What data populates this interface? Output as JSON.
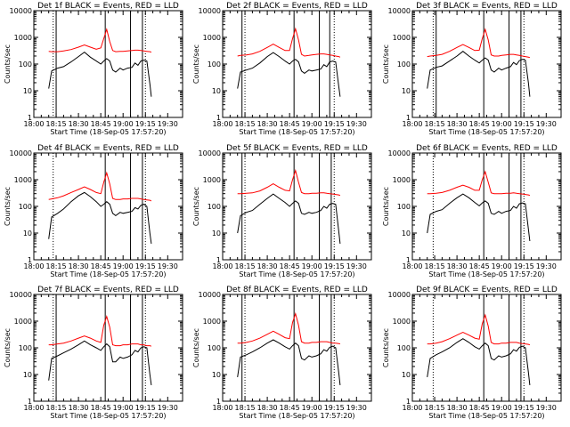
{
  "colors": {
    "events": "#000000",
    "lld": "#ff0000",
    "axis": "#000000",
    "background": "#ffffff"
  },
  "panel_title_suffix": " BLACK = Events, RED = LLD",
  "xlabel": "Start Time (18-Sep-05 17:57:20)",
  "ylabel": "Counts/sec",
  "x_tick_labels": [
    "18:00",
    "18:15",
    "18:30",
    "18:45",
    "19:00",
    "19:15",
    "19:30"
  ],
  "x_tick_minutes": [
    0,
    15,
    30,
    45,
    60,
    75,
    90
  ],
  "y_tick_labels": [
    "1",
    "10",
    "100",
    "1000",
    "10000"
  ],
  "y_tick_values": [
    1,
    10,
    100,
    1000,
    10000
  ],
  "chart_data": [
    {
      "type": "line",
      "title_prefix": "Det 1f",
      "xlim": [
        0,
        100
      ],
      "ylim": [
        1,
        10000
      ],
      "x_minutes": [
        10,
        12,
        16,
        20,
        25,
        30,
        34,
        38,
        42,
        45,
        47,
        49,
        51,
        53,
        55,
        58,
        60,
        63,
        66,
        68,
        70,
        72,
        74,
        76,
        78,
        79
      ],
      "series": [
        {
          "name": "Events",
          "values": [
            12,
            55,
            70,
            80,
            120,
            190,
            280,
            180,
            130,
            100,
            130,
            160,
            130,
            60,
            50,
            70,
            60,
            70,
            75,
            110,
            90,
            130,
            140,
            130,
            18,
            6
          ]
        },
        {
          "name": "LLD",
          "values": [
            300,
            290,
            290,
            310,
            350,
            430,
            520,
            430,
            360,
            400,
            900,
            2000,
            700,
            320,
            290,
            300,
            300,
            310,
            320,
            330,
            330,
            320,
            310,
            300,
            290,
            280
          ]
        }
      ],
      "vlines_solid_minutes": [
        15,
        48,
        65,
        73
      ],
      "vlines_dotted_minutes": [
        13,
        75
      ]
    },
    {
      "type": "line",
      "title_prefix": "Det 2f",
      "xlim": [
        0,
        100
      ],
      "ylim": [
        1,
        10000
      ],
      "x_minutes": [
        10,
        12,
        16,
        20,
        25,
        30,
        34,
        38,
        42,
        45,
        47,
        49,
        51,
        53,
        55,
        58,
        60,
        63,
        66,
        68,
        70,
        72,
        74,
        76,
        78,
        79
      ],
      "series": [
        {
          "name": "Events",
          "values": [
            12,
            50,
            60,
            70,
            110,
            190,
            270,
            190,
            130,
            100,
            130,
            150,
            120,
            55,
            45,
            60,
            55,
            60,
            65,
            95,
            80,
            120,
            130,
            120,
            15,
            6
          ]
        },
        {
          "name": "LLD",
          "values": [
            200,
            210,
            220,
            240,
            300,
            420,
            560,
            420,
            320,
            320,
            900,
            2100,
            800,
            230,
            200,
            210,
            220,
            230,
            240,
            240,
            230,
            220,
            210,
            200,
            190,
            180
          ]
        }
      ],
      "vlines_solid_minutes": [
        13,
        48,
        65,
        72
      ],
      "vlines_dotted_minutes": [
        15,
        75
      ]
    },
    {
      "type": "line",
      "title_prefix": "Det 3f",
      "xlim": [
        0,
        100
      ],
      "ylim": [
        1,
        10000
      ],
      "x_minutes": [
        10,
        12,
        16,
        20,
        25,
        30,
        34,
        38,
        42,
        45,
        47,
        49,
        51,
        53,
        55,
        58,
        60,
        63,
        66,
        68,
        70,
        72,
        74,
        76,
        78,
        79
      ],
      "series": [
        {
          "name": "Events",
          "values": [
            12,
            60,
            75,
            85,
            130,
            200,
            300,
            200,
            140,
            110,
            140,
            170,
            140,
            60,
            50,
            70,
            60,
            70,
            80,
            115,
            95,
            135,
            150,
            140,
            20,
            6
          ]
        },
        {
          "name": "LLD",
          "values": [
            190,
            200,
            210,
            230,
            300,
            420,
            540,
            420,
            320,
            330,
            900,
            2000,
            800,
            220,
            200,
            200,
            210,
            220,
            230,
            230,
            220,
            210,
            200,
            190,
            180,
            175
          ]
        }
      ],
      "vlines_solid_minutes": [
        16,
        48,
        65,
        73
      ],
      "vlines_dotted_minutes": [
        14,
        75
      ]
    },
    {
      "type": "line",
      "title_prefix": "Det 4f",
      "xlim": [
        0,
        100
      ],
      "ylim": [
        1,
        10000
      ],
      "x_minutes": [
        10,
        12,
        16,
        20,
        25,
        30,
        34,
        38,
        42,
        45,
        47,
        49,
        51,
        53,
        55,
        58,
        60,
        63,
        66,
        68,
        70,
        72,
        74,
        76,
        78,
        79
      ],
      "series": [
        {
          "name": "Events",
          "values": [
            6,
            40,
            55,
            80,
            150,
            250,
            330,
            230,
            150,
            100,
            120,
            150,
            120,
            55,
            45,
            60,
            55,
            60,
            65,
            90,
            80,
            110,
            120,
            100,
            10,
            4
          ]
        },
        {
          "name": "LLD",
          "values": [
            180,
            190,
            210,
            250,
            330,
            430,
            540,
            430,
            330,
            300,
            800,
            1800,
            700,
            200,
            180,
            180,
            190,
            190,
            200,
            200,
            200,
            190,
            180,
            175,
            170,
            160
          ]
        }
      ],
      "vlines_solid_minutes": [
        48,
        65,
        73
      ],
      "vlines_dotted_minutes": [
        13,
        75
      ]
    },
    {
      "type": "line",
      "title_prefix": "Det 5f",
      "xlim": [
        0,
        100
      ],
      "ylim": [
        1,
        10000
      ],
      "x_minutes": [
        10,
        12,
        16,
        20,
        25,
        30,
        34,
        38,
        42,
        45,
        47,
        49,
        51,
        53,
        55,
        58,
        60,
        63,
        66,
        68,
        70,
        72,
        74,
        76,
        78,
        79
      ],
      "series": [
        {
          "name": "Events",
          "values": [
            10,
            45,
            60,
            70,
            120,
            200,
            290,
            200,
            140,
            100,
            130,
            160,
            130,
            55,
            50,
            60,
            55,
            60,
            70,
            100,
            85,
            120,
            130,
            120,
            12,
            4
          ]
        },
        {
          "name": "LLD",
          "values": [
            300,
            300,
            310,
            320,
            380,
            520,
            700,
            520,
            400,
            380,
            1000,
            2200,
            800,
            330,
            300,
            300,
            310,
            310,
            320,
            320,
            310,
            300,
            290,
            280,
            270,
            260
          ]
        }
      ],
      "vlines_solid_minutes": [
        13,
        48,
        65,
        73
      ],
      "vlines_dotted_minutes": [
        15,
        75
      ]
    },
    {
      "type": "line",
      "title_prefix": "Det 6f",
      "xlim": [
        0,
        100
      ],
      "ylim": [
        1,
        10000
      ],
      "x_minutes": [
        10,
        12,
        16,
        20,
        25,
        30,
        34,
        38,
        42,
        45,
        47,
        49,
        51,
        53,
        55,
        58,
        60,
        63,
        66,
        68,
        70,
        72,
        74,
        76,
        78,
        79
      ],
      "series": [
        {
          "name": "Events",
          "values": [
            10,
            50,
            65,
            75,
            130,
            210,
            290,
            210,
            140,
            105,
            135,
            160,
            130,
            55,
            50,
            65,
            55,
            65,
            70,
            100,
            85,
            125,
            135,
            125,
            14,
            5
          ]
        },
        {
          "name": "LLD",
          "values": [
            300,
            300,
            310,
            330,
            400,
            520,
            620,
            520,
            400,
            400,
            1000,
            2000,
            800,
            320,
            300,
            300,
            300,
            310,
            310,
            320,
            310,
            300,
            290,
            280,
            270,
            260
          ]
        }
      ],
      "vlines_solid_minutes": [
        48,
        65,
        73
      ],
      "vlines_dotted_minutes": [
        14,
        75
      ]
    },
    {
      "type": "line",
      "title_prefix": "Det 7f",
      "xlim": [
        0,
        100
      ],
      "ylim": [
        1,
        10000
      ],
      "x_minutes": [
        10,
        12,
        16,
        20,
        25,
        30,
        34,
        38,
        42,
        45,
        47,
        49,
        51,
        53,
        55,
        58,
        60,
        63,
        66,
        68,
        70,
        72,
        74,
        76,
        78,
        79
      ],
      "series": [
        {
          "name": "Events",
          "values": [
            6,
            40,
            50,
            65,
            90,
            130,
            180,
            130,
            100,
            80,
            110,
            140,
            110,
            30,
            30,
            45,
            40,
            45,
            55,
            80,
            70,
            100,
            110,
            100,
            10,
            4
          ]
        },
        {
          "name": "LLD",
          "values": [
            130,
            130,
            140,
            150,
            180,
            230,
            280,
            230,
            180,
            160,
            700,
            1500,
            600,
            130,
            120,
            120,
            130,
            130,
            140,
            140,
            140,
            130,
            130,
            120,
            120,
            115
          ]
        }
      ],
      "vlines_solid_minutes": [
        15,
        48,
        65,
        73
      ],
      "vlines_dotted_minutes": [
        13,
        75
      ]
    },
    {
      "type": "line",
      "title_prefix": "Det 8f",
      "xlim": [
        0,
        100
      ],
      "ylim": [
        1,
        10000
      ],
      "x_minutes": [
        10,
        12,
        16,
        20,
        25,
        30,
        34,
        38,
        42,
        45,
        47,
        49,
        51,
        53,
        55,
        58,
        60,
        63,
        66,
        68,
        70,
        72,
        74,
        76,
        78,
        79
      ],
      "series": [
        {
          "name": "Events",
          "values": [
            8,
            45,
            55,
            70,
            100,
            150,
            200,
            150,
            110,
            90,
            120,
            150,
            120,
            40,
            35,
            50,
            45,
            50,
            60,
            85,
            75,
            105,
            115,
            100,
            12,
            4
          ]
        },
        {
          "name": "LLD",
          "values": [
            150,
            150,
            160,
            180,
            230,
            320,
            420,
            320,
            240,
            220,
            900,
            1900,
            700,
            170,
            150,
            150,
            160,
            160,
            170,
            170,
            170,
            160,
            150,
            150,
            145,
            140
          ]
        }
      ],
      "vlines_solid_minutes": [
        13,
        48,
        65,
        73
      ],
      "vlines_dotted_minutes": [
        15,
        75
      ]
    },
    {
      "type": "line",
      "title_prefix": "Det 9f",
      "xlim": [
        0,
        100
      ],
      "ylim": [
        1,
        10000
      ],
      "x_minutes": [
        10,
        12,
        16,
        20,
        25,
        30,
        34,
        38,
        42,
        45,
        47,
        49,
        51,
        53,
        55,
        58,
        60,
        63,
        66,
        68,
        70,
        72,
        74,
        76,
        78,
        79
      ],
      "series": [
        {
          "name": "Events",
          "values": [
            8,
            40,
            55,
            70,
            100,
            160,
            220,
            160,
            110,
            90,
            120,
            150,
            120,
            40,
            35,
            50,
            45,
            50,
            60,
            85,
            75,
            105,
            115,
            100,
            12,
            4
          ]
        },
        {
          "name": "LLD",
          "values": [
            140,
            140,
            150,
            170,
            220,
            300,
            380,
            300,
            230,
            210,
            800,
            1700,
            650,
            160,
            140,
            140,
            150,
            150,
            160,
            160,
            160,
            150,
            145,
            140,
            135,
            130
          ]
        }
      ],
      "vlines_solid_minutes": [
        48,
        65,
        73
      ],
      "vlines_dotted_minutes": [
        14,
        75
      ]
    }
  ]
}
